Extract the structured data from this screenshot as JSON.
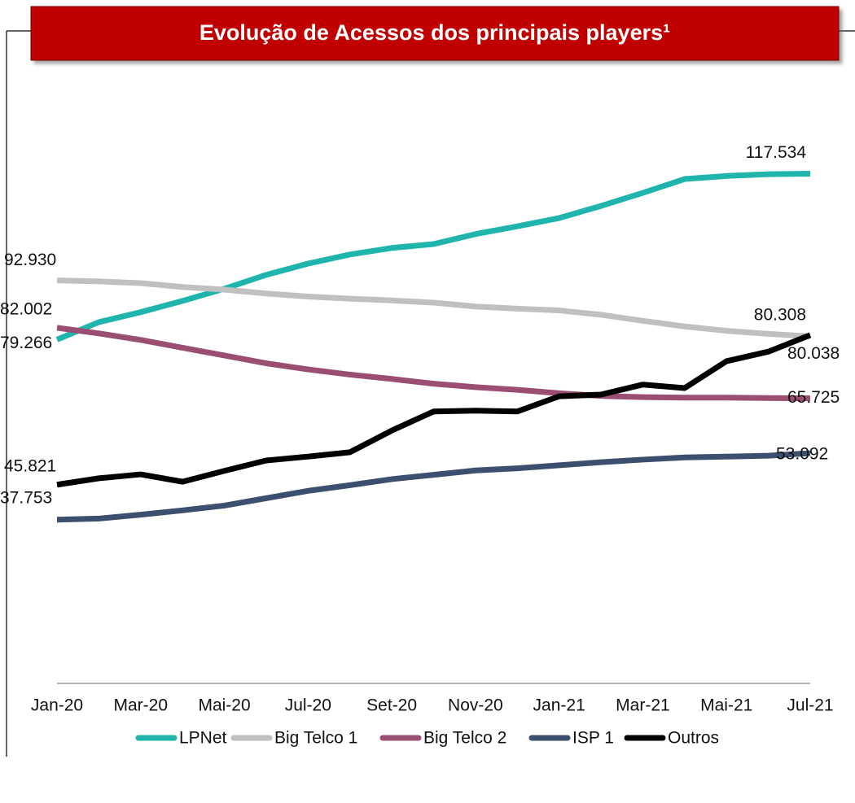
{
  "chart_data": {
    "type": "line",
    "title": "Evolução de Acessos dos principais players¹",
    "categories": [
      "Jan-20",
      null,
      "Mar-20",
      null,
      "Mai-20",
      null,
      "Jul-20",
      null,
      "Set-20",
      null,
      "Nov-20",
      null,
      "Jan-21",
      null,
      "Mar-21",
      null,
      "Mai-21",
      null,
      "Jul-21"
    ],
    "ylim": [
      0,
      130000
    ],
    "legend": "bottom",
    "series": [
      {
        "name": "LPNet",
        "color": "#1fb5ad",
        "values": [
          79266,
          83300,
          85600,
          88200,
          91000,
          94200,
          96800,
          98900,
          100400,
          101300,
          103600,
          105400,
          107300,
          110100,
          113100,
          116300,
          117000,
          117400,
          117534
        ],
        "value_labels": [
          "79.266",
          null,
          null,
          null,
          null,
          null,
          null,
          null,
          null,
          null,
          null,
          null,
          null,
          null,
          null,
          null,
          null,
          null,
          "117.534"
        ]
      },
      {
        "name": "Big Telco 1",
        "color": "#c0c0c0",
        "values": [
          92930,
          92700,
          92300,
          91400,
          90800,
          89900,
          89200,
          88700,
          88300,
          87800,
          86900,
          86400,
          86000,
          85000,
          83600,
          82300,
          81300,
          80600,
          80038
        ],
        "value_labels": [
          "92.930",
          null,
          null,
          null,
          null,
          null,
          null,
          null,
          null,
          null,
          null,
          null,
          null,
          null,
          null,
          null,
          null,
          null,
          "80.038"
        ]
      },
      {
        "name": "Big Telco 2",
        "color": "#9a4f72",
        "values": [
          82002,
          80700,
          79200,
          77400,
          75600,
          73800,
          72400,
          71200,
          70200,
          69100,
          68300,
          67700,
          66900,
          66300,
          66000,
          65900,
          65900,
          65800,
          65725
        ],
        "value_labels": [
          "82.002",
          null,
          null,
          null,
          null,
          null,
          null,
          null,
          null,
          null,
          null,
          null,
          null,
          null,
          null,
          null,
          null,
          null,
          "65.725"
        ]
      },
      {
        "name": "ISP 1",
        "color": "#3d4f6e",
        "values": [
          37753,
          38000,
          38900,
          39900,
          41000,
          42700,
          44400,
          45700,
          47100,
          48100,
          49100,
          49600,
          50300,
          51000,
          51600,
          52100,
          52300,
          52500,
          53092
        ],
        "value_labels": [
          "37.753",
          null,
          null,
          null,
          null,
          null,
          null,
          null,
          null,
          null,
          null,
          null,
          null,
          null,
          null,
          null,
          null,
          null,
          "53.092"
        ]
      },
      {
        "name": "Outros",
        "color": "#000000",
        "values": [
          45821,
          47300,
          48200,
          46500,
          49000,
          51400,
          52300,
          53300,
          58300,
          62700,
          62900,
          62700,
          66200,
          66600,
          68900,
          68100,
          74300,
          76500,
          80308
        ],
        "value_labels": [
          "45.821",
          null,
          null,
          null,
          null,
          null,
          null,
          null,
          null,
          null,
          null,
          null,
          null,
          null,
          null,
          null,
          null,
          null,
          "80.308"
        ]
      }
    ]
  }
}
